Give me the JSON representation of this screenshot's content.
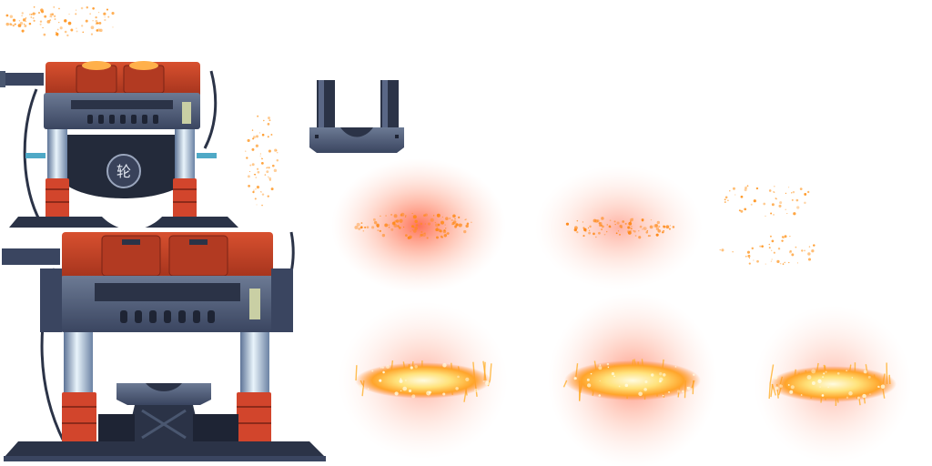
{
  "sheet": {
    "emblem_glyph": "轮",
    "colors": {
      "red_body": "#c8442a",
      "red_dark": "#7a2416",
      "glow": "#ff9a3a",
      "steel": "#4a5770",
      "steel_dark": "#2b3347",
      "steel_light": "#6f7d96",
      "piston": "#cfe3f3",
      "clamp": "#d2452c",
      "spark_core": "#fff6c0",
      "spark_orange": "#ff9a2a",
      "halo": "#ff6b4a"
    },
    "sprites": [
      {
        "name": "press-machine-closed"
      },
      {
        "name": "press-machine-open"
      },
      {
        "name": "anvil-top-piece"
      },
      {
        "name": "spark-dust-small"
      },
      {
        "name": "spark-dust-vertical"
      },
      {
        "name": "glow-dust-frame-1"
      },
      {
        "name": "glow-dust-frame-2"
      },
      {
        "name": "glow-dust-frame-3"
      },
      {
        "name": "fire-burst-frame-1"
      },
      {
        "name": "fire-burst-frame-2"
      },
      {
        "name": "fire-burst-frame-3"
      }
    ]
  }
}
